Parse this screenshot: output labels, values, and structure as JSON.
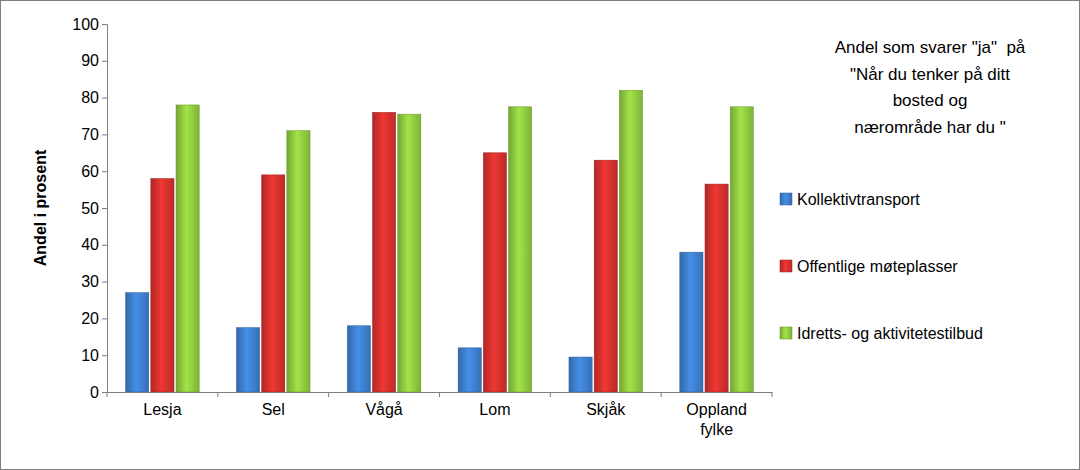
{
  "chart_data": {
    "type": "bar",
    "title": "Andel som svarer \"ja\"  på\n\"Når du tenker på ditt\nbosted og\nnærområde har du \"",
    "y_label": "Andel i prosent",
    "categories": [
      "Lesja",
      "Sel",
      "Vågå",
      "Lom",
      "Skjåk",
      "Oppland fylke"
    ],
    "series": [
      {
        "name": "Kollektivtransport",
        "color": "#3d7cc9",
        "values": [
          27,
          17.5,
          18,
          12,
          9.5,
          38
        ]
      },
      {
        "name": "Offentlige møteplasser",
        "color": "#d0302c",
        "values": [
          58,
          59,
          76,
          65,
          63,
          56.5
        ]
      },
      {
        "name": "Idretts- og aktivitetestilbud",
        "color": "#8cc63e",
        "values": [
          78,
          71,
          75.5,
          77.5,
          82,
          77.5
        ]
      }
    ],
    "ylim": [
      0,
      100
    ],
    "yticks": [
      0,
      10,
      20,
      30,
      40,
      50,
      60,
      70,
      80,
      90,
      100
    ],
    "grid": false,
    "legend": "right"
  }
}
